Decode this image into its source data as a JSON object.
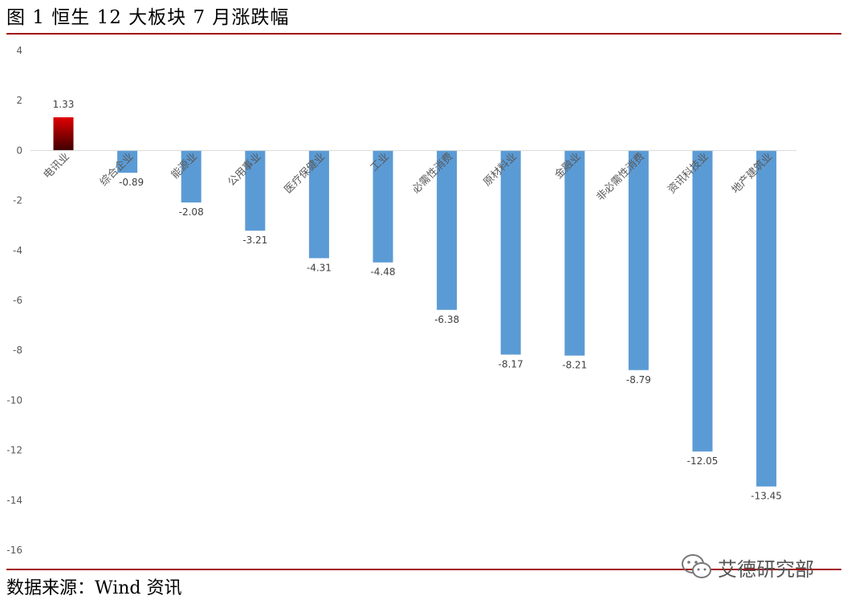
{
  "figure_title": "图 1 恒生 12 大板块 7 月涨跌幅",
  "source": "数据来源：Wind 资讯",
  "watermark": "艾德研究部",
  "colors": {
    "rule": "#a10f15",
    "bar_negative": "#5b9bd5",
    "bar_positive_top": "#e00000",
    "bar_positive_bottom": "#3d0000",
    "axis": "#d9d9d9"
  },
  "chart_data": {
    "type": "bar",
    "categories": [
      "电讯业",
      "综合企业",
      "能源业",
      "公用事业",
      "医疗保健业",
      "工业",
      "必需性消费",
      "原材料业",
      "金融业",
      "非必需性消费",
      "资讯科技业",
      "地产建筑业"
    ],
    "values": [
      1.33,
      -0.89,
      -2.08,
      -3.21,
      -4.31,
      -4.48,
      -6.38,
      -8.17,
      -8.21,
      -8.79,
      -12.05,
      -13.45
    ],
    "value_labels": [
      "1.33",
      "-0.89",
      "-2.08",
      "-3.21",
      "-4.31",
      "-4.48",
      "-6.38",
      "-8.17",
      "-8.21",
      "-8.79",
      "-12.05",
      "-13.45"
    ],
    "ylim": [
      -16,
      4
    ],
    "yticks": [
      "4",
      "2",
      "0",
      "-2",
      "-4",
      "-6",
      "-8",
      "-10",
      "-12",
      "-14",
      "-16"
    ],
    "grid": false,
    "legend": "none"
  }
}
